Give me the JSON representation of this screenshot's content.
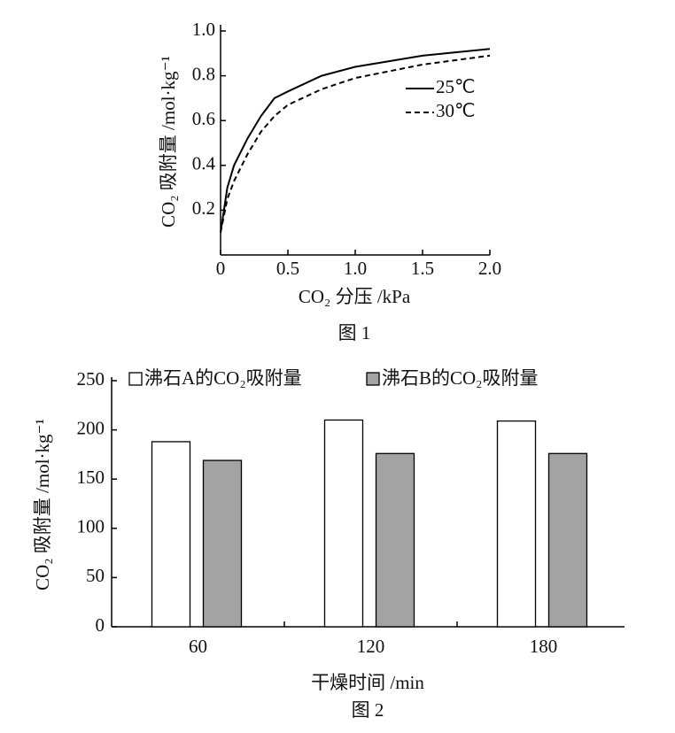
{
  "chart_data": [
    {
      "type": "line",
      "title": "图 1",
      "x_label": "CO₂ 分压 /kPa",
      "y_label": "CO₂ 吸附量 /mol·kg⁻¹",
      "x": [
        0,
        0.05,
        0.1,
        0.2,
        0.3,
        0.4,
        0.5,
        0.75,
        1.0,
        1.5,
        2.0
      ],
      "series": [
        {
          "name": "25℃",
          "color": "#000000",
          "line_style": "solid",
          "values": [
            0.1,
            0.3,
            0.4,
            0.52,
            0.62,
            0.7,
            0.73,
            0.8,
            0.84,
            0.89,
            0.92
          ]
        },
        {
          "name": "30℃",
          "color": "#000000",
          "line_style": "dashed",
          "values": [
            0.1,
            0.25,
            0.33,
            0.45,
            0.55,
            0.62,
            0.67,
            0.74,
            0.79,
            0.85,
            0.89
          ]
        }
      ],
      "xlim": [
        0,
        2
      ],
      "ylim": [
        0,
        1
      ],
      "xticks": [
        0,
        0.5,
        {
          "value": 1,
          "label": "1.0"
        },
        1.5,
        {
          "value": 2,
          "label": "2.0"
        }
      ],
      "yticks": [
        0.2,
        0.4,
        0.6,
        0.8,
        {
          "value": 1,
          "label": "1.0"
        }
      ],
      "legend": "right"
    },
    {
      "type": "bar",
      "title": "图 2",
      "x_label": "干燥时间 /min",
      "y_label": "CO₂ 吸附量 /mol·kg⁻¹",
      "categories": [
        "60",
        "120",
        "180"
      ],
      "series": [
        {
          "name": "沸石A的CO₂吸附量",
          "color": "#ffffff",
          "values": [
            188,
            210,
            209
          ]
        },
        {
          "name": "沸石B的CO₂吸附量",
          "color": "#a3a3a3",
          "values": [
            169,
            176,
            176
          ]
        }
      ],
      "ylim": [
        0,
        250
      ],
      "yticks": [
        0,
        50,
        100,
        150,
        200,
        250
      ],
      "legend": "top"
    }
  ]
}
